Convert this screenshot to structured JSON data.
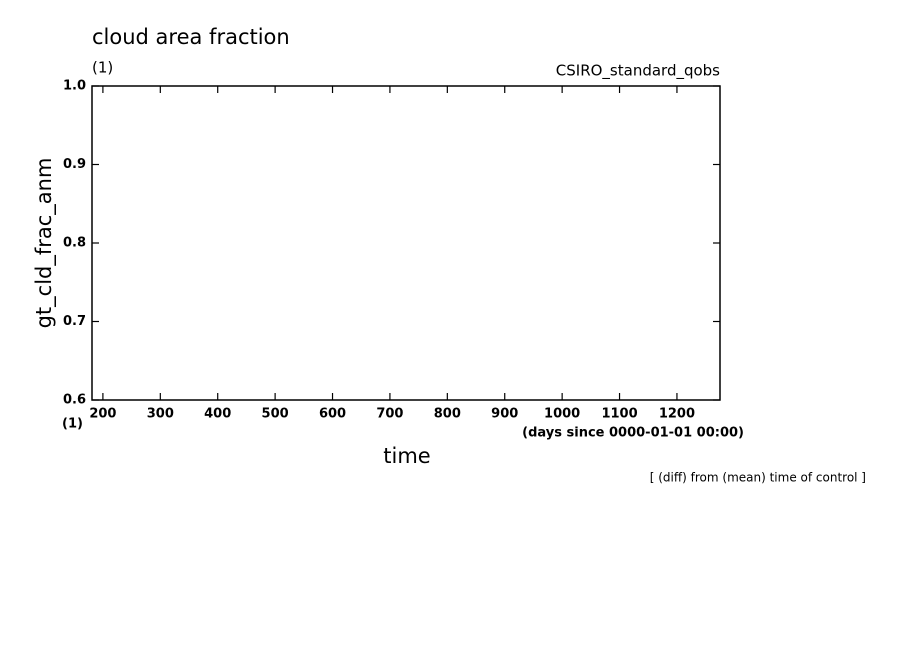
{
  "chart_data": {
    "type": "line",
    "title": "cloud area fraction",
    "subtitle": "(1)",
    "source": "CSIRO_standard_qobs",
    "y_label": "gt_cld_frac_anm",
    "y_unit": "(1)",
    "x_label": "time",
    "x_unit": "(days since 0000-01-01 00:00)",
    "note": "[ (diff) from (mean) time of control ]",
    "series": [],
    "xlim": [
      181,
      1275
    ],
    "xticks": [
      200,
      300,
      400,
      500,
      600,
      700,
      800,
      900,
      1000,
      1100,
      1200
    ],
    "ylim": [
      0.6,
      1.0
    ],
    "yticks": [
      0.6,
      0.7,
      0.8,
      0.9,
      {
        "value": 1.0,
        "label": "1.0"
      }
    ]
  }
}
